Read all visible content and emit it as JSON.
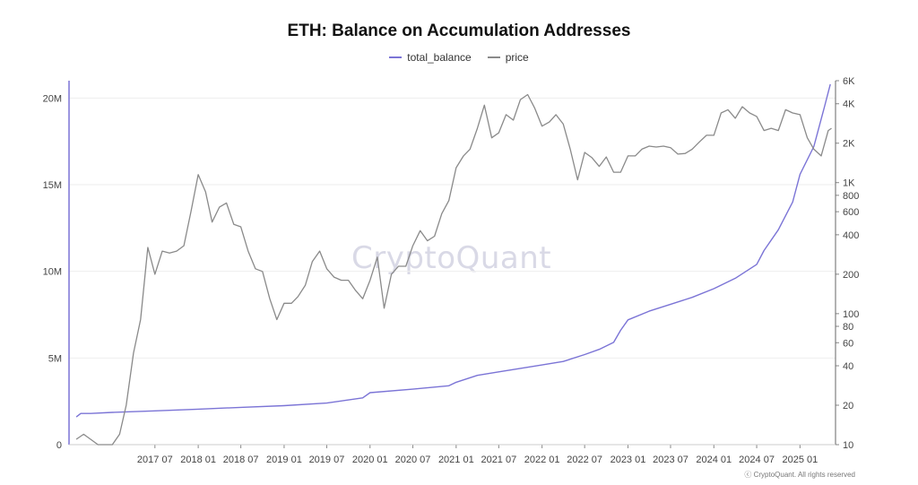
{
  "chart_data": {
    "type": "line",
    "title": "ETH: Balance on Accumulation Addresses",
    "legend_position": "top-center",
    "grid": true,
    "x_ticks": [
      "2017 07",
      "2018 01",
      "2018 07",
      "2019 01",
      "2019 07",
      "2020 01",
      "2020 07",
      "2021 01",
      "2021 07",
      "2022 01",
      "2022 07",
      "2023 01",
      "2023 07",
      "2024 01",
      "2024 07",
      "2025 01"
    ],
    "y_left": {
      "ticks": [
        "0",
        "5M",
        "10M",
        "15M",
        "20M"
      ],
      "tick_values": [
        0,
        5000000,
        10000000,
        15000000,
        20000000
      ],
      "range": [
        0,
        21000000
      ]
    },
    "y_right": {
      "scale": "log",
      "ticks": [
        "10",
        "20",
        "40",
        "60",
        "80",
        "100",
        "200",
        "400",
        "600",
        "800",
        "1K",
        "2K",
        "4K",
        "6K"
      ],
      "tick_values": [
        10,
        20,
        40,
        60,
        80,
        100,
        200,
        400,
        600,
        800,
        1000,
        2000,
        4000,
        6000
      ],
      "range": [
        10,
        6000
      ]
    },
    "series": [
      {
        "name": "total_balance",
        "axis": "left",
        "color": "#7b74d6",
        "points": [
          [
            "2016-08-01",
            1600000
          ],
          [
            "2016-08-20",
            1800000
          ],
          [
            "2016-10-01",
            1800000
          ],
          [
            "2017-01-01",
            1860000
          ],
          [
            "2017-07-01",
            1950000
          ],
          [
            "2018-01-01",
            2050000
          ],
          [
            "2018-07-01",
            2150000
          ],
          [
            "2019-01-01",
            2250000
          ],
          [
            "2019-07-01",
            2400000
          ],
          [
            "2019-12-01",
            2700000
          ],
          [
            "2020-01-01",
            3000000
          ],
          [
            "2020-07-01",
            3200000
          ],
          [
            "2020-12-01",
            3400000
          ],
          [
            "2021-01-01",
            3600000
          ],
          [
            "2021-04-01",
            4000000
          ],
          [
            "2021-07-01",
            4200000
          ],
          [
            "2021-10-01",
            4400000
          ],
          [
            "2022-01-01",
            4600000
          ],
          [
            "2022-04-01",
            4800000
          ],
          [
            "2022-07-01",
            5200000
          ],
          [
            "2022-09-01",
            5500000
          ],
          [
            "2022-11-01",
            5900000
          ],
          [
            "2022-12-01",
            6600000
          ],
          [
            "2023-01-01",
            7200000
          ],
          [
            "2023-04-01",
            7700000
          ],
          [
            "2023-07-01",
            8100000
          ],
          [
            "2023-10-01",
            8500000
          ],
          [
            "2024-01-01",
            9000000
          ],
          [
            "2024-04-01",
            9600000
          ],
          [
            "2024-07-01",
            10400000
          ],
          [
            "2024-08-01",
            11200000
          ],
          [
            "2024-10-01",
            12400000
          ],
          [
            "2024-12-01",
            14000000
          ],
          [
            "2025-01-01",
            15600000
          ],
          [
            "2025-03-01",
            17200000
          ],
          [
            "2025-04-15",
            19500000
          ],
          [
            "2025-05-10",
            20800000
          ]
        ]
      },
      {
        "name": "price",
        "axis": "right",
        "color": "#8a8a8a",
        "points": [
          [
            "2016-08-01",
            11
          ],
          [
            "2016-09-01",
            12
          ],
          [
            "2016-11-01",
            10
          ],
          [
            "2017-01-01",
            10
          ],
          [
            "2017-02-01",
            12
          ],
          [
            "2017-03-01",
            20
          ],
          [
            "2017-04-01",
            50
          ],
          [
            "2017-05-01",
            90
          ],
          [
            "2017-06-01",
            320
          ],
          [
            "2017-07-01",
            200
          ],
          [
            "2017-08-01",
            300
          ],
          [
            "2017-09-01",
            290
          ],
          [
            "2017-10-01",
            300
          ],
          [
            "2017-11-01",
            330
          ],
          [
            "2017-12-01",
            600
          ],
          [
            "2018-01-01",
            1150
          ],
          [
            "2018-02-01",
            850
          ],
          [
            "2018-03-01",
            500
          ],
          [
            "2018-04-01",
            650
          ],
          [
            "2018-05-01",
            700
          ],
          [
            "2018-06-01",
            480
          ],
          [
            "2018-07-01",
            460
          ],
          [
            "2018-08-01",
            300
          ],
          [
            "2018-09-01",
            220
          ],
          [
            "2018-10-01",
            210
          ],
          [
            "2018-11-01",
            130
          ],
          [
            "2018-12-01",
            90
          ],
          [
            "2019-01-01",
            120
          ],
          [
            "2019-02-01",
            120
          ],
          [
            "2019-03-01",
            135
          ],
          [
            "2019-04-01",
            165
          ],
          [
            "2019-05-01",
            250
          ],
          [
            "2019-06-01",
            300
          ],
          [
            "2019-07-01",
            220
          ],
          [
            "2019-08-01",
            190
          ],
          [
            "2019-09-01",
            180
          ],
          [
            "2019-10-01",
            180
          ],
          [
            "2019-11-01",
            150
          ],
          [
            "2019-12-01",
            130
          ],
          [
            "2020-01-01",
            180
          ],
          [
            "2020-02-01",
            270
          ],
          [
            "2020-03-01",
            110
          ],
          [
            "2020-04-01",
            200
          ],
          [
            "2020-05-01",
            230
          ],
          [
            "2020-06-01",
            230
          ],
          [
            "2020-07-01",
            330
          ],
          [
            "2020-08-01",
            430
          ],
          [
            "2020-09-01",
            360
          ],
          [
            "2020-10-01",
            390
          ],
          [
            "2020-11-01",
            580
          ],
          [
            "2020-12-01",
            730
          ],
          [
            "2021-01-01",
            1300
          ],
          [
            "2021-02-01",
            1600
          ],
          [
            "2021-03-01",
            1800
          ],
          [
            "2021-04-01",
            2600
          ],
          [
            "2021-05-01",
            3900
          ],
          [
            "2021-06-01",
            2200
          ],
          [
            "2021-07-01",
            2400
          ],
          [
            "2021-08-01",
            3300
          ],
          [
            "2021-09-01",
            3000
          ],
          [
            "2021-10-01",
            4300
          ],
          [
            "2021-11-01",
            4700
          ],
          [
            "2021-12-01",
            3700
          ],
          [
            "2022-01-01",
            2700
          ],
          [
            "2022-02-01",
            2900
          ],
          [
            "2022-03-01",
            3300
          ],
          [
            "2022-04-01",
            2800
          ],
          [
            "2022-05-01",
            1800
          ],
          [
            "2022-06-01",
            1050
          ],
          [
            "2022-07-01",
            1700
          ],
          [
            "2022-08-01",
            1550
          ],
          [
            "2022-09-01",
            1330
          ],
          [
            "2022-10-01",
            1570
          ],
          [
            "2022-11-01",
            1200
          ],
          [
            "2022-12-01",
            1200
          ],
          [
            "2023-01-01",
            1600
          ],
          [
            "2023-02-01",
            1600
          ],
          [
            "2023-03-01",
            1800
          ],
          [
            "2023-04-01",
            1900
          ],
          [
            "2023-05-01",
            1870
          ],
          [
            "2023-06-01",
            1900
          ],
          [
            "2023-07-01",
            1850
          ],
          [
            "2023-08-01",
            1650
          ],
          [
            "2023-09-01",
            1670
          ],
          [
            "2023-10-01",
            1800
          ],
          [
            "2023-11-01",
            2050
          ],
          [
            "2023-12-01",
            2300
          ],
          [
            "2024-01-01",
            2300
          ],
          [
            "2024-02-01",
            3400
          ],
          [
            "2024-03-01",
            3600
          ],
          [
            "2024-04-01",
            3100
          ],
          [
            "2024-05-01",
            3800
          ],
          [
            "2024-06-01",
            3400
          ],
          [
            "2024-07-01",
            3200
          ],
          [
            "2024-08-01",
            2500
          ],
          [
            "2024-09-01",
            2600
          ],
          [
            "2024-10-01",
            2500
          ],
          [
            "2024-11-01",
            3600
          ],
          [
            "2024-12-01",
            3400
          ],
          [
            "2025-01-01",
            3300
          ],
          [
            "2025-02-01",
            2200
          ],
          [
            "2025-03-01",
            1800
          ],
          [
            "2025-04-01",
            1600
          ],
          [
            "2025-05-01",
            2500
          ],
          [
            "2025-05-15",
            2600
          ]
        ]
      }
    ]
  },
  "watermark": "CryptoQuant",
  "copyright": "ⓒ CryptoQuant. All rights reserved"
}
